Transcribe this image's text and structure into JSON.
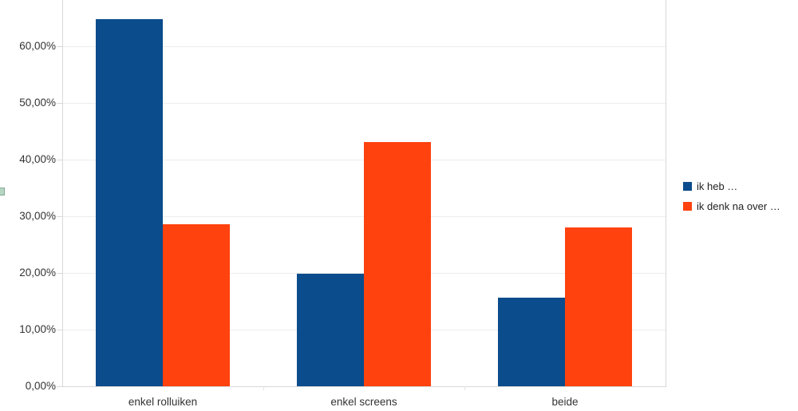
{
  "chart_data": {
    "type": "bar",
    "title": "",
    "xlabel": "",
    "ylabel": "",
    "categories": [
      "enkel rolluiken",
      "enkel screens",
      "beide"
    ],
    "series": [
      {
        "name": "ik heb …",
        "color": "#0a4c8c",
        "values": [
          64.8,
          19.9,
          15.6
        ]
      },
      {
        "name": "ik denk na over …",
        "color": "#ff420e",
        "values": [
          28.6,
          43.1,
          28.0
        ]
      }
    ],
    "ylim": [
      0,
      70
    ],
    "ytick_step": 10,
    "yticks": [
      0,
      10,
      20,
      30,
      40,
      50,
      60
    ],
    "ytick_labels": [
      "0,00%",
      "10,00%",
      "20,00%",
      "30,00%",
      "40,00%",
      "50,00%",
      "60,00%"
    ],
    "grid": true,
    "legend_position": "right"
  },
  "colors": {
    "series1": "#0a4c8c",
    "series2": "#ff420e",
    "gridline": "#ececec",
    "axis": "#d8d8d8",
    "label_text": "#333333",
    "selection_handle_fill": "#b5d6c3",
    "selection_handle_border": "#87a994"
  }
}
